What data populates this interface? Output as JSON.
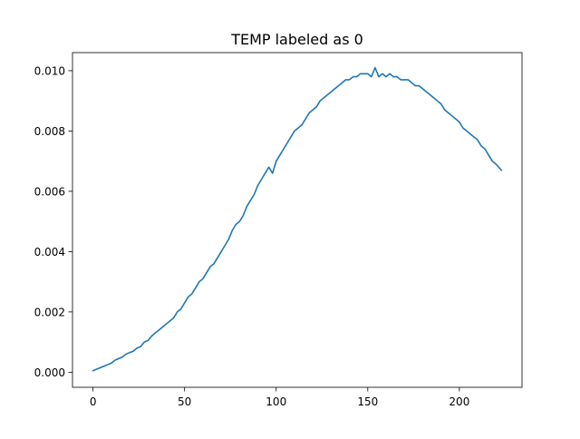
{
  "chart_data": {
    "type": "line",
    "title": "TEMP labeled as 0",
    "xlabel": "",
    "ylabel": "",
    "xlim": [
      -11.2,
      234.2
    ],
    "ylim": [
      -0.0005,
      0.0106
    ],
    "xticks": [
      0,
      50,
      100,
      150,
      200
    ],
    "xtick_labels": [
      "0",
      "50",
      "100",
      "150",
      "200"
    ],
    "yticks": [
      0.0,
      0.002,
      0.004,
      0.006,
      0.008,
      0.01
    ],
    "ytick_labels": [
      "0.000",
      "0.002",
      "0.004",
      "0.006",
      "0.008",
      "0.010"
    ],
    "grid": false,
    "legend": "none",
    "series": [
      {
        "color": "#1f77b4",
        "x": [
          0,
          2,
          4,
          6,
          8,
          10,
          12,
          14,
          16,
          18,
          20,
          22,
          24,
          26,
          28,
          30,
          32,
          34,
          36,
          38,
          40,
          42,
          44,
          46,
          48,
          50,
          52,
          54,
          56,
          58,
          60,
          62,
          64,
          66,
          68,
          70,
          72,
          74,
          76,
          78,
          80,
          82,
          84,
          86,
          88,
          90,
          92,
          94,
          96,
          98,
          100,
          102,
          104,
          106,
          108,
          110,
          112,
          114,
          116,
          118,
          120,
          122,
          124,
          126,
          128,
          130,
          132,
          134,
          136,
          138,
          140,
          142,
          144,
          146,
          148,
          150,
          152,
          154,
          156,
          158,
          160,
          162,
          164,
          166,
          168,
          170,
          172,
          174,
          176,
          178,
          180,
          182,
          184,
          186,
          188,
          190,
          192,
          194,
          196,
          198,
          200,
          202,
          204,
          206,
          208,
          210,
          212,
          214,
          216,
          218,
          220,
          223
        ],
        "values": [
          5e-05,
          0.0001,
          0.00015,
          0.0002,
          0.00025,
          0.0003,
          0.0004,
          0.00045,
          0.0005,
          0.0006,
          0.00065,
          0.0007,
          0.0008,
          0.00085,
          0.001,
          0.00105,
          0.0012,
          0.0013,
          0.0014,
          0.0015,
          0.0016,
          0.0017,
          0.0018,
          0.002,
          0.0021,
          0.0023,
          0.0025,
          0.0026,
          0.0028,
          0.003,
          0.0031,
          0.0033,
          0.0035,
          0.0036,
          0.0038,
          0.004,
          0.0042,
          0.0044,
          0.0047,
          0.0049,
          0.005,
          0.0052,
          0.0055,
          0.0057,
          0.0059,
          0.0062,
          0.0064,
          0.0066,
          0.0068,
          0.0066,
          0.007,
          0.0072,
          0.0074,
          0.0076,
          0.0078,
          0.008,
          0.0081,
          0.0082,
          0.0084,
          0.0086,
          0.0087,
          0.0088,
          0.009,
          0.0091,
          0.0092,
          0.0093,
          0.0094,
          0.0095,
          0.0096,
          0.0097,
          0.0097,
          0.0098,
          0.0098,
          0.0099,
          0.0099,
          0.0099,
          0.0098,
          0.0101,
          0.0098,
          0.0099,
          0.0098,
          0.0099,
          0.0098,
          0.0098,
          0.0097,
          0.0097,
          0.0097,
          0.0096,
          0.0095,
          0.0095,
          0.0094,
          0.0093,
          0.0092,
          0.0091,
          0.009,
          0.0089,
          0.0087,
          0.0086,
          0.0085,
          0.0084,
          0.0083,
          0.0081,
          0.008,
          0.0079,
          0.0078,
          0.0077,
          0.0075,
          0.0074,
          0.0072,
          0.007,
          0.0069,
          0.0067
        ]
      }
    ]
  }
}
